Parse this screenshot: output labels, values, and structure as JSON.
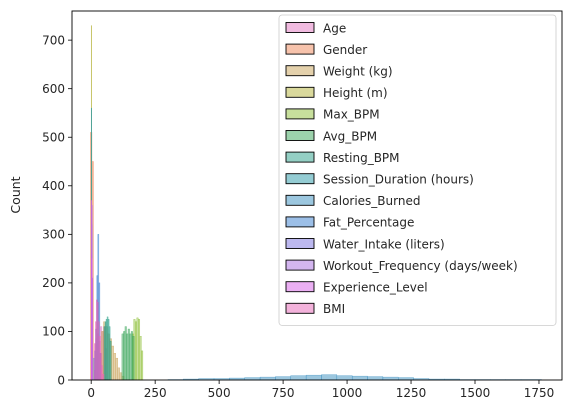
{
  "chart_data": {
    "type": "histogram",
    "title": "",
    "xlabel": "",
    "ylabel": "Count",
    "xlim": [
      -75,
      1840
    ],
    "ylim": [
      0,
      760
    ],
    "xticks": [
      0,
      250,
      500,
      750,
      1000,
      1250,
      1500,
      1750
    ],
    "yticks": [
      0,
      100,
      200,
      300,
      400,
      500,
      600,
      700
    ],
    "grid": false,
    "legend_position": "upper-right",
    "series": [
      {
        "name": "Age",
        "color": "#e377c2",
        "bins": [
          [
            12,
            18,
            20
          ],
          [
            18,
            24,
            85
          ],
          [
            24,
            30,
            95
          ],
          [
            30,
            36,
            80
          ],
          [
            36,
            42,
            110
          ],
          [
            42,
            48,
            100
          ],
          [
            48,
            54,
            110
          ],
          [
            54,
            60,
            65
          ]
        ]
      },
      {
        "name": "Gender",
        "color": "#f0875a",
        "bins": [
          [
            -3,
            3,
            510
          ],
          [
            3,
            9,
            450
          ]
        ]
      },
      {
        "name": "Weight (kg)",
        "color": "#c9a35a",
        "bins": [
          [
            40,
            48,
            100
          ],
          [
            48,
            56,
            120
          ],
          [
            56,
            64,
            110
          ],
          [
            64,
            72,
            95
          ],
          [
            72,
            80,
            85
          ],
          [
            80,
            88,
            70
          ],
          [
            88,
            96,
            55
          ],
          [
            96,
            104,
            45
          ],
          [
            104,
            112,
            25
          ],
          [
            112,
            120,
            15
          ],
          [
            120,
            128,
            8
          ]
        ]
      },
      {
        "name": "Height (m)",
        "color": "#b5b33a",
        "bins": [
          [
            0,
            2,
            730
          ]
        ]
      },
      {
        "name": "Max_BPM",
        "color": "#8fbf3a",
        "bins": [
          [
            160,
            166,
            95
          ],
          [
            166,
            172,
            125
          ],
          [
            172,
            178,
            120
          ],
          [
            178,
            184,
            128
          ],
          [
            184,
            190,
            125
          ],
          [
            190,
            196,
            90
          ],
          [
            196,
            202,
            60
          ]
        ]
      },
      {
        "name": "Avg_BPM",
        "color": "#3aa55a",
        "bins": [
          [
            120,
            126,
            95
          ],
          [
            126,
            132,
            100
          ],
          [
            132,
            138,
            110
          ],
          [
            138,
            144,
            95
          ],
          [
            144,
            150,
            105
          ],
          [
            150,
            156,
            95
          ],
          [
            156,
            162,
            100
          ],
          [
            162,
            168,
            90
          ]
        ]
      },
      {
        "name": "Resting_BPM",
        "color": "#2aa08a",
        "bins": [
          [
            50,
            54,
            110
          ],
          [
            54,
            58,
            120
          ],
          [
            58,
            62,
            125
          ],
          [
            62,
            66,
            130
          ],
          [
            66,
            70,
            125
          ],
          [
            70,
            74,
            110
          ],
          [
            74,
            78,
            80
          ]
        ]
      },
      {
        "name": "Session_Duration (hours)",
        "color": "#2a9aa8",
        "bins": [
          [
            0,
            2,
            560
          ]
        ]
      },
      {
        "name": "Calories_Burned",
        "color": "#3a8fc0",
        "bins": [
          [
            300,
            360,
            1
          ],
          [
            360,
            420,
            2
          ],
          [
            420,
            480,
            3
          ],
          [
            480,
            540,
            3
          ],
          [
            540,
            600,
            4
          ],
          [
            600,
            660,
            5
          ],
          [
            660,
            720,
            6
          ],
          [
            720,
            780,
            7
          ],
          [
            780,
            840,
            9
          ],
          [
            840,
            900,
            10
          ],
          [
            900,
            960,
            11
          ],
          [
            960,
            1020,
            9
          ],
          [
            1020,
            1080,
            8
          ],
          [
            1080,
            1140,
            7
          ],
          [
            1140,
            1200,
            6
          ],
          [
            1200,
            1260,
            5
          ],
          [
            1260,
            1320,
            3
          ],
          [
            1320,
            1380,
            2
          ],
          [
            1380,
            1440,
            2
          ],
          [
            1440,
            1500,
            1
          ],
          [
            1500,
            1560,
            1
          ],
          [
            1560,
            1620,
            1
          ],
          [
            1620,
            1680,
            1
          ],
          [
            1680,
            1760,
            1
          ]
        ]
      },
      {
        "name": "Fat_Percentage",
        "color": "#3a7fd0",
        "bins": [
          [
            10,
            14,
            45
          ],
          [
            14,
            18,
            60
          ],
          [
            18,
            22,
            105
          ],
          [
            22,
            26,
            215
          ],
          [
            26,
            30,
            300
          ],
          [
            30,
            34,
            200
          ],
          [
            34,
            38,
            55
          ]
        ]
      },
      {
        "name": "Water_Intake (liters)",
        "color": "#7a72e0",
        "bins": [
          [
            0,
            2,
            260
          ],
          [
            2,
            4,
            320
          ]
        ]
      },
      {
        "name": "Workout_Frequency (days/week)",
        "color": "#a86ce0",
        "bins": [
          [
            0,
            2,
            80
          ],
          [
            2,
            4,
            360
          ],
          [
            4,
            6,
            210
          ]
        ]
      },
      {
        "name": "Experience_Level",
        "color": "#d860e8",
        "bins": [
          [
            0,
            1.5,
            370
          ],
          [
            1.5,
            3,
            250
          ]
        ]
      },
      {
        "name": "BMI",
        "color": "#e866b8",
        "bins": [
          [
            12,
            16,
            75
          ],
          [
            16,
            20,
            120
          ],
          [
            20,
            24,
            165
          ],
          [
            24,
            28,
            160
          ],
          [
            28,
            32,
            120
          ],
          [
            32,
            36,
            90
          ],
          [
            36,
            40,
            55
          ],
          [
            40,
            44,
            30
          ],
          [
            44,
            50,
            12
          ]
        ]
      }
    ]
  }
}
